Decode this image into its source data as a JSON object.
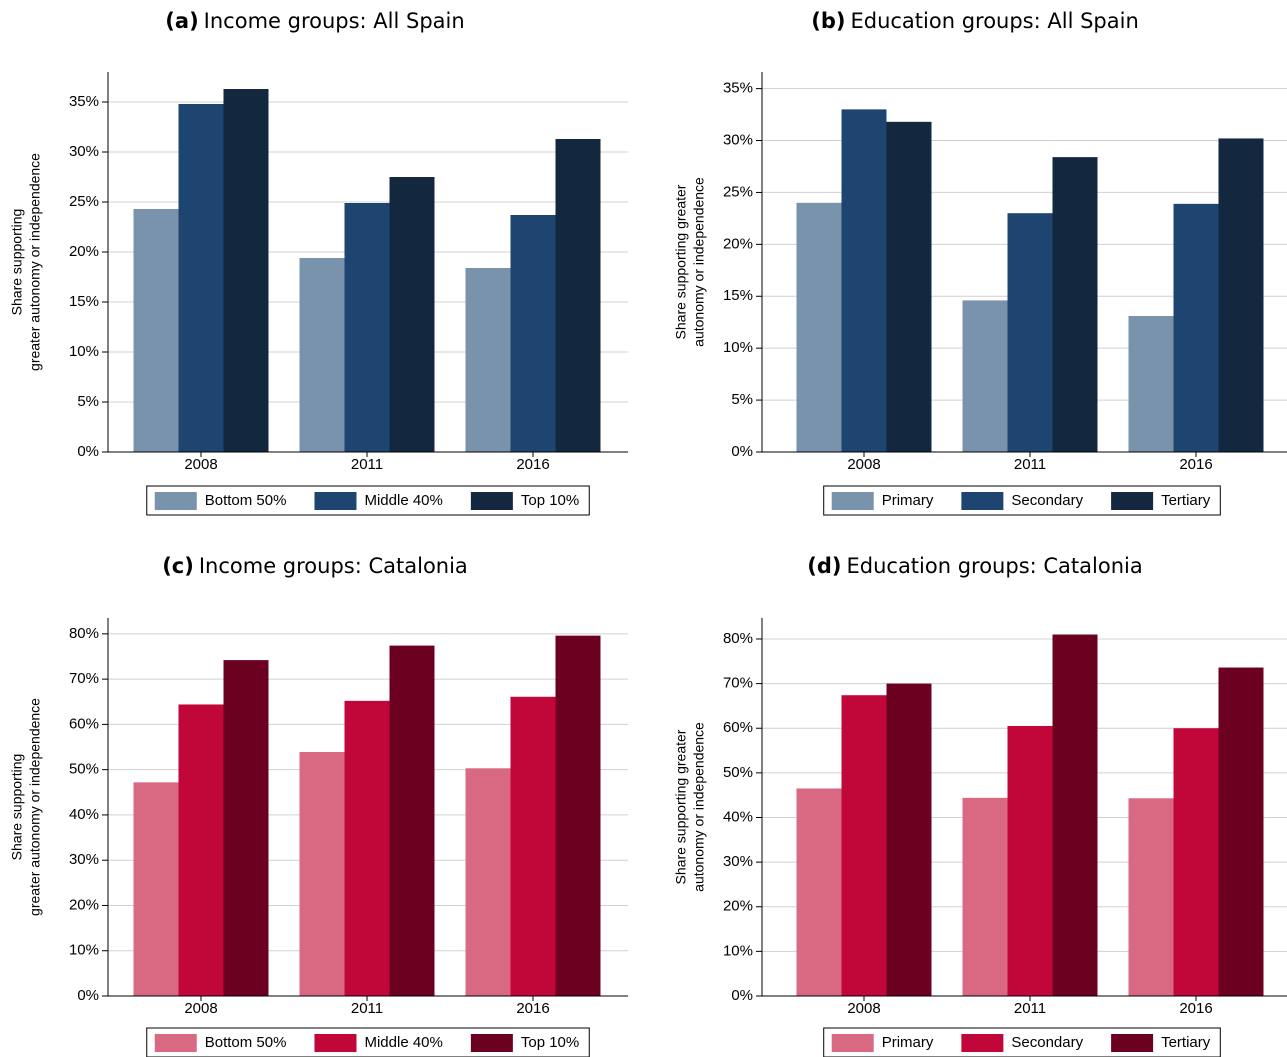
{
  "chart_data": [
    {
      "type": "bar",
      "panel": "(a)",
      "title": "Income groups: All Spain",
      "y_label": [
        "Share supporting",
        "greater autonomy or independence"
      ],
      "categories": [
        "2008",
        "2011",
        "2016"
      ],
      "series": [
        {
          "name": "Bottom 50%",
          "color": "#7a93ad",
          "values": [
            24.3,
            19.4,
            18.4
          ]
        },
        {
          "name": "Middle 40%",
          "color": "#1d4570",
          "values": [
            34.8,
            24.9,
            23.7
          ]
        },
        {
          "name": "Top 10%",
          "color": "#13273f",
          "values": [
            36.3,
            27.5,
            31.3
          ]
        }
      ],
      "ylim": [
        0,
        38
      ],
      "yticks": [
        {
          "value": 0,
          "label": "0%"
        },
        {
          "value": 5,
          "label": "5%"
        },
        {
          "value": 10,
          "label": "10%"
        },
        {
          "value": 15,
          "label": "15%"
        },
        {
          "value": 20,
          "label": "20%"
        },
        {
          "value": 25,
          "label": "25%"
        },
        {
          "value": 30,
          "label": "30%"
        },
        {
          "value": 35,
          "label": "35%"
        }
      ],
      "grid": true
    },
    {
      "type": "bar",
      "panel": "(b)",
      "title": "Education groups: All Spain",
      "y_label": [
        "Share supporting greater",
        "autonomy or independence"
      ],
      "categories": [
        "2008",
        "2011",
        "2016"
      ],
      "series": [
        {
          "name": "Primary",
          "color": "#7a93ad",
          "values": [
            24.0,
            14.6,
            13.1
          ]
        },
        {
          "name": "Secondary",
          "color": "#1d4570",
          "values": [
            33.0,
            23.0,
            23.9
          ]
        },
        {
          "name": "Tertiary",
          "color": "#13273f",
          "values": [
            31.8,
            28.4,
            30.2
          ]
        }
      ],
      "ylim": [
        0,
        36.6
      ],
      "yticks": [
        {
          "value": 0,
          "label": "0%"
        },
        {
          "value": 5,
          "label": "5%"
        },
        {
          "value": 10,
          "label": "10%"
        },
        {
          "value": 15,
          "label": "15%"
        },
        {
          "value": 20,
          "label": "20%"
        },
        {
          "value": 25,
          "label": "25%"
        },
        {
          "value": 30,
          "label": "30%"
        },
        {
          "value": 35,
          "label": "35%"
        }
      ],
      "grid": true
    },
    {
      "type": "bar",
      "panel": "(c)",
      "title": "Income groups: Catalonia",
      "y_label": [
        "Share supporting",
        "greater autonomy or independence"
      ],
      "categories": [
        "2008",
        "2011",
        "2016"
      ],
      "series": [
        {
          "name": "Bottom 50%",
          "color": "#d96882",
          "values": [
            47.2,
            53.9,
            50.3
          ]
        },
        {
          "name": "Middle 40%",
          "color": "#c1073a",
          "values": [
            64.4,
            65.2,
            66.1
          ]
        },
        {
          "name": "Top 10%",
          "color": "#6b0020",
          "values": [
            74.2,
            77.4,
            79.6
          ]
        }
      ],
      "ylim": [
        0,
        83.5
      ],
      "yticks": [
        {
          "value": 0,
          "label": "0%"
        },
        {
          "value": 10,
          "label": "10%"
        },
        {
          "value": 20,
          "label": "20%"
        },
        {
          "value": 30,
          "label": "30%"
        },
        {
          "value": 40,
          "label": "40%"
        },
        {
          "value": 50,
          "label": "50%"
        },
        {
          "value": 60,
          "label": "60%"
        },
        {
          "value": 70,
          "label": "70%"
        },
        {
          "value": 80,
          "label": "80%"
        }
      ],
      "grid": true
    },
    {
      "type": "bar",
      "panel": "(d)",
      "title": "Education groups: Catalonia",
      "y_label": [
        "Share supporting greater",
        "autonomy or independence"
      ],
      "categories": [
        "2008",
        "2011",
        "2016"
      ],
      "series": [
        {
          "name": "Primary",
          "color": "#d96882",
          "values": [
            46.5,
            44.4,
            44.3
          ]
        },
        {
          "name": "Secondary",
          "color": "#c1073a",
          "values": [
            67.4,
            60.5,
            60.0
          ]
        },
        {
          "name": "Tertiary",
          "color": "#6b0020",
          "values": [
            70.0,
            81.0,
            73.6
          ]
        }
      ],
      "ylim": [
        0,
        84.7
      ],
      "yticks": [
        {
          "value": 0,
          "label": "0%"
        },
        {
          "value": 10,
          "label": "10%"
        },
        {
          "value": 20,
          "label": "20%"
        },
        {
          "value": 30,
          "label": "30%"
        },
        {
          "value": 40,
          "label": "40%"
        },
        {
          "value": 50,
          "label": "50%"
        },
        {
          "value": 60,
          "label": "60%"
        },
        {
          "value": 70,
          "label": "70%"
        },
        {
          "value": 80,
          "label": "80%"
        }
      ],
      "grid": true
    }
  ]
}
